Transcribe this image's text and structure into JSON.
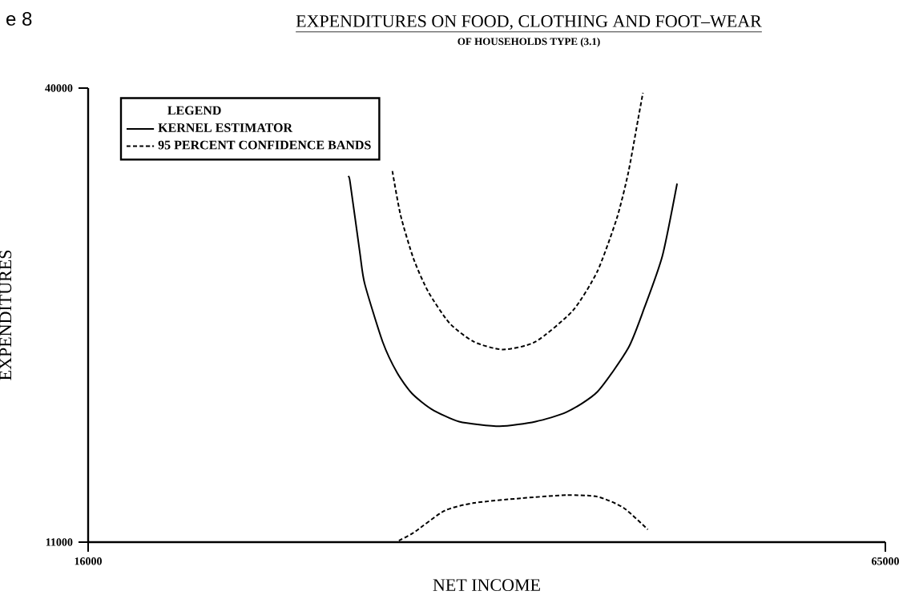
{
  "chart_data": {
    "type": "line",
    "title": "EXPENDITURES ON FOOD, CLOTHING AND FOOT–WEAR",
    "subtitle": "OF HOUSEHOLDS TYPE (3.1)",
    "xlabel": "NET INCOME",
    "ylabel": "EXPENDITURES",
    "legend_title": "LEGEND",
    "annotations": [
      "e 8"
    ],
    "xlim": [
      16000,
      65000
    ],
    "ylim": [
      11000,
      40000
    ],
    "xticks": [
      16000,
      65000
    ],
    "yticks": [
      11000,
      40000
    ],
    "grid": false,
    "legend": "top left",
    "marker": "none",
    "series": [
      {
        "name": "KERNEL ESTIMATOR",
        "color": "#000000",
        "line_style": "solid",
        "x": [
          32000,
          32100,
          32700,
          33000,
          34100,
          35000,
          35900,
          37100,
          38800,
          41300,
          43500,
          45400,
          47300,
          49200,
          50200,
          51300,
          52200
        ],
        "values": [
          34300,
          34000,
          29500,
          27500,
          23800,
          21800,
          20500,
          19500,
          18700,
          18400,
          18700,
          19300,
          20600,
          23400,
          26000,
          29300,
          33900
        ]
      },
      {
        "name": "95 PERCENT CONFIDENCE BANDS",
        "color": "#000000",
        "line_style": "dashed",
        "x": [
          34700,
          35200,
          36000,
          36900,
          38200,
          39700,
          41500,
          43500,
          45800,
          47300,
          48500,
          49200,
          49800,
          50100
        ],
        "values": [
          34700,
          31900,
          29100,
          27000,
          25000,
          23800,
          23300,
          23800,
          25800,
          28300,
          31700,
          34600,
          38000,
          39700
        ]
      },
      {
        "color": "#000000",
        "line_style": "dashed",
        "x": [
          35100,
          36000,
          37900,
          39700,
          42600,
          45400,
          47300,
          48900,
          50400
        ],
        "values": [
          11100,
          11600,
          13000,
          13500,
          13800,
          14000,
          13900,
          13200,
          11800
        ]
      }
    ]
  }
}
